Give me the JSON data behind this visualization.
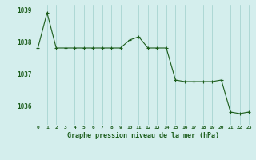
{
  "hours": [
    0,
    1,
    2,
    3,
    4,
    5,
    6,
    7,
    8,
    9,
    10,
    11,
    12,
    13,
    14,
    15,
    16,
    17,
    18,
    19,
    20,
    21,
    22,
    23
  ],
  "pressure": [
    1037.8,
    1038.9,
    1037.8,
    1037.8,
    1037.8,
    1037.8,
    1037.8,
    1037.8,
    1037.8,
    1037.8,
    1038.05,
    1038.15,
    1037.8,
    1037.8,
    1037.8,
    1036.8,
    1036.75,
    1036.75,
    1036.75,
    1036.75,
    1036.8,
    1035.8,
    1035.75,
    1035.8
  ],
  "line_color": "#1a5c1a",
  "marker": "+",
  "bg_color": "#d4eeed",
  "grid_color": "#9ecfcb",
  "xlabel": "Graphe pression niveau de la mer (hPa)",
  "xlabel_color": "#1a5c1a",
  "tick_color": "#1a5c1a",
  "ylim": [
    1035.4,
    1039.15
  ],
  "yticks": [
    1036,
    1037,
    1038,
    1039
  ],
  "xticks": [
    0,
    1,
    2,
    3,
    4,
    5,
    6,
    7,
    8,
    9,
    10,
    11,
    12,
    13,
    14,
    15,
    16,
    17,
    18,
    19,
    20,
    21,
    22,
    23
  ],
  "xtick_labels": [
    "0",
    "1",
    "2",
    "3",
    "4",
    "5",
    "6",
    "7",
    "8",
    "9",
    "10",
    "11",
    "12",
    "13",
    "14",
    "15",
    "16",
    "17",
    "18",
    "19",
    "20",
    "21",
    "22",
    "23"
  ]
}
